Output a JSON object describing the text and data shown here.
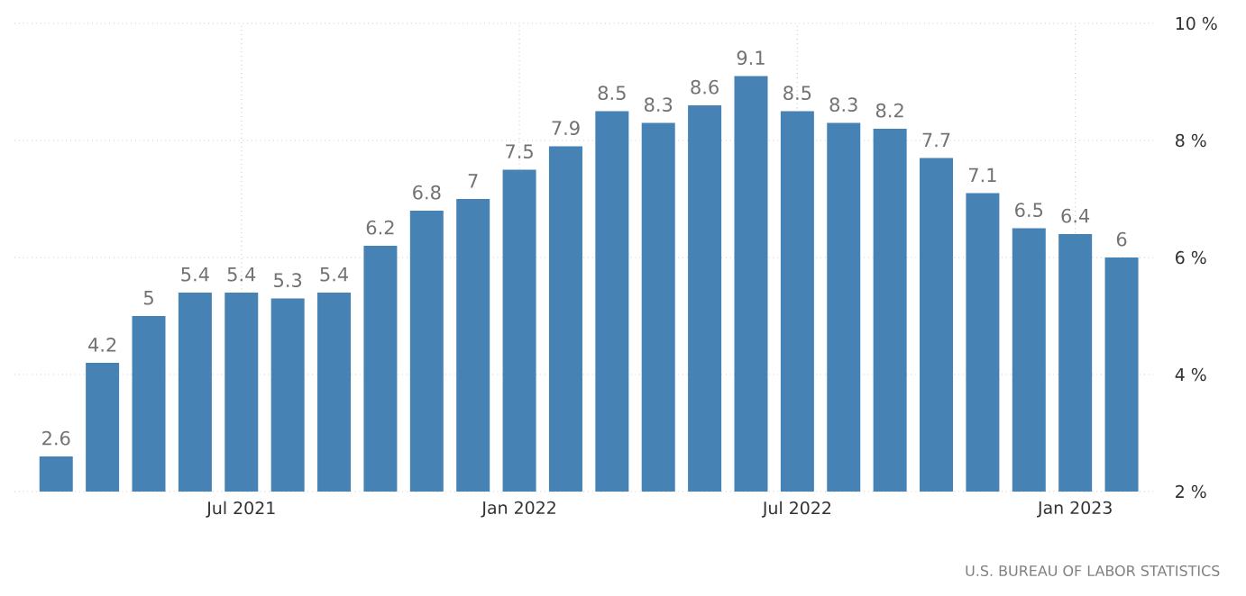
{
  "chart_data": {
    "type": "bar",
    "categories": [
      null,
      null,
      null,
      null,
      "Jul 2021",
      null,
      null,
      null,
      null,
      null,
      "Jan 2022",
      null,
      null,
      null,
      null,
      null,
      "Jul 2022",
      null,
      null,
      null,
      null,
      null,
      "Jan 2023",
      null
    ],
    "values": [
      2.6,
      4.2,
      5,
      5.4,
      5.4,
      5.3,
      5.4,
      6.2,
      6.8,
      7,
      7.5,
      7.9,
      8.5,
      8.3,
      8.6,
      9.1,
      8.5,
      8.3,
      8.2,
      7.7,
      7.1,
      6.5,
      6.4,
      6
    ],
    "color": "#4682b4",
    "ylim": [
      2,
      10
    ],
    "yticks": [
      {
        "value": 2,
        "label": "2 %"
      },
      {
        "value": 4,
        "label": "4 %"
      },
      {
        "value": 6,
        "label": "6 %"
      },
      {
        "value": 8,
        "label": "8 %"
      },
      {
        "value": 10,
        "label": "10 %"
      }
    ],
    "grid": true,
    "data_labels": true,
    "annotations": [
      "U.S. BUREAU OF LABOR STATISTICS"
    ]
  }
}
